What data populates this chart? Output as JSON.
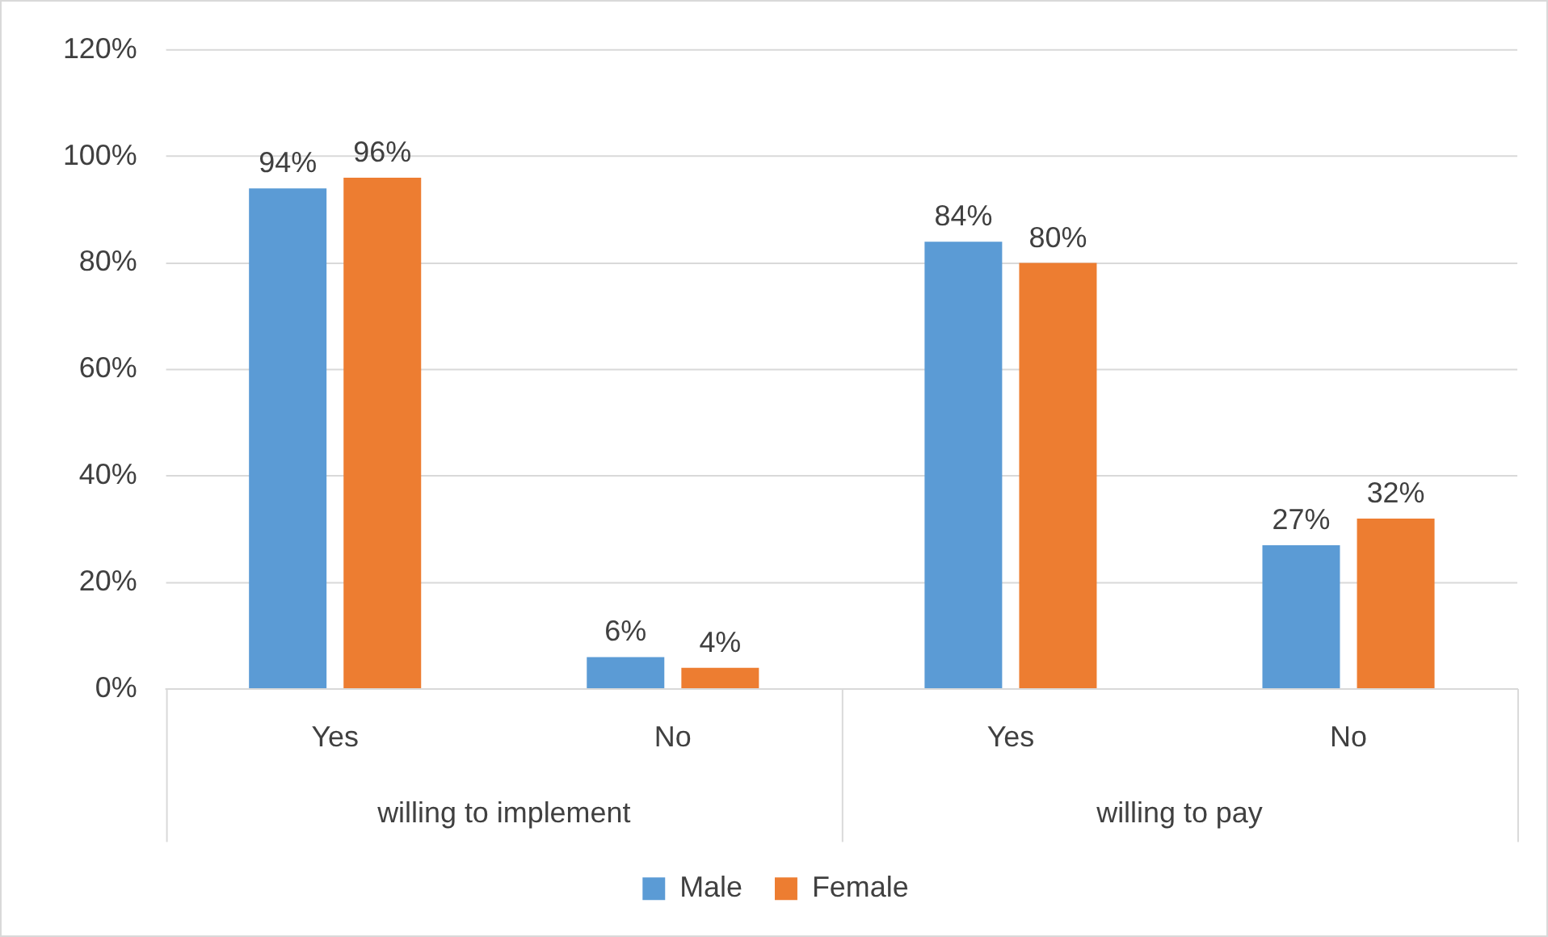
{
  "chart_data": {
    "type": "bar",
    "categories": [
      "Yes",
      "No",
      "Yes",
      "No"
    ],
    "series": [
      {
        "name": "Male",
        "color": "#5b9bd5",
        "values": [
          94,
          6,
          84,
          27
        ],
        "value_labels": [
          "94%",
          "6%",
          "84%",
          "27%"
        ]
      },
      {
        "name": "Female",
        "color": "#ed7d31",
        "values": [
          96,
          4,
          80,
          32
        ],
        "value_labels": [
          "96%",
          "4%",
          "80%",
          "32%"
        ]
      }
    ],
    "ylim": [
      0,
      120
    ],
    "yticks": [
      {
        "value": 0,
        "label": "0%"
      },
      {
        "value": 20,
        "label": "20%"
      },
      {
        "value": 40,
        "label": "40%"
      },
      {
        "value": 60,
        "label": "60%"
      },
      {
        "value": 80,
        "label": "80%"
      },
      {
        "value": 100,
        "label": "100%"
      },
      {
        "value": 120,
        "label": "120%"
      }
    ],
    "annotations": [
      "willing to implement",
      "willing to pay"
    ],
    "grid": "y",
    "legend": "bottom"
  }
}
